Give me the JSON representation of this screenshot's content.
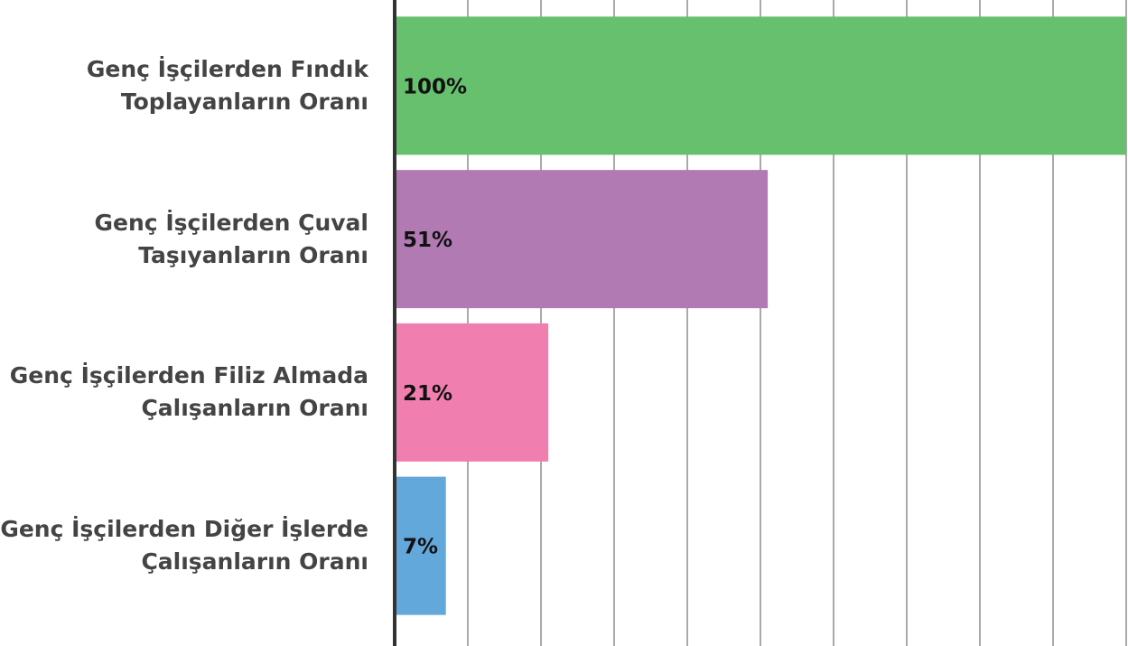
{
  "chart_data": {
    "type": "bar",
    "orientation": "horizontal",
    "categories": [
      "Genç İşçilerden Fındık Toplayanların Oranı",
      "Genç İşçilerden Çuval Taşıyanların Oranı",
      "Genç İşçilerden Filiz Almada Çalışanların Oranı",
      "Genç İşçilerden Diğer İşlerde Çalışanların Oranı"
    ],
    "values": [
      100,
      51,
      21,
      7
    ],
    "value_labels": [
      "100%",
      "51%",
      "21%",
      "7%"
    ],
    "colors": [
      "#66c06e",
      "#b27ab3",
      "#f07fb0",
      "#62a8da"
    ],
    "xlim": [
      0,
      100
    ],
    "xticks": [
      0,
      10,
      20,
      30,
      40,
      50,
      60,
      70,
      80,
      90,
      100
    ],
    "grid": true
  }
}
